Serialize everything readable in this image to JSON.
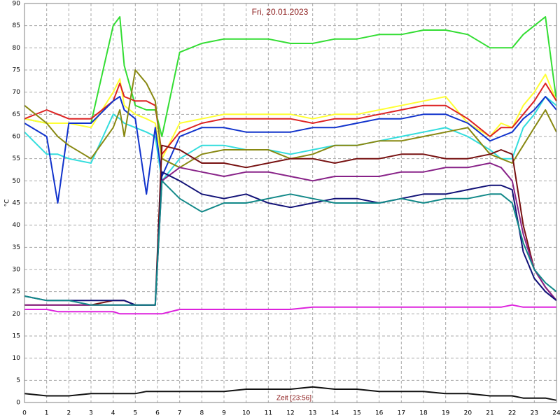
{
  "chart_data": {
    "type": "line",
    "title": "Fri, 20.01.2023",
    "ylabel": "°C",
    "xlabel": "Zeit [23:56]",
    "x": [
      0,
      1,
      1.5,
      2,
      3,
      4,
      4.3,
      4.5,
      5,
      5.5,
      5.9,
      6.2,
      7,
      8,
      9,
      10,
      11,
      12,
      13,
      14,
      15,
      16,
      17,
      18,
      19,
      20,
      21,
      21.5,
      22,
      22.5,
      23,
      23.5,
      24
    ],
    "xlim": [
      0,
      24
    ],
    "ylim": [
      0,
      90
    ],
    "xticks": [
      0,
      1,
      2,
      3,
      4,
      5,
      6,
      7,
      8,
      9,
      10,
      11,
      12,
      13,
      14,
      15,
      16,
      17,
      18,
      19,
      20,
      21,
      22,
      23,
      24
    ],
    "yticks": [
      0,
      5,
      10,
      15,
      20,
      25,
      30,
      35,
      40,
      45,
      50,
      55,
      60,
      65,
      70,
      75,
      80,
      85,
      90
    ],
    "grid": true,
    "series": [
      {
        "color": "#33dd33",
        "values": [
          64,
          63,
          63,
          63,
          63,
          85,
          87,
          76,
          67,
          66,
          66,
          60,
          79,
          81,
          82,
          82,
          82,
          81,
          81,
          82,
          82,
          83,
          83,
          84,
          84,
          83,
          80,
          80,
          80,
          83,
          85,
          87,
          68
        ]
      },
      {
        "color": "#ffff33",
        "values": [
          64,
          63,
          63,
          63,
          62,
          70,
          73,
          67,
          65,
          64,
          63,
          55,
          63,
          64,
          65,
          65,
          65,
          65,
          64,
          65,
          65,
          66,
          67,
          68,
          69,
          63,
          60,
          63,
          62,
          67,
          70,
          74,
          68
        ]
      },
      {
        "color": "#dd2222",
        "values": [
          64,
          66,
          65,
          64,
          64,
          68,
          72,
          69,
          68,
          68,
          67,
          56,
          61,
          63,
          64,
          64,
          64,
          64,
          63,
          64,
          64,
          65,
          66,
          67,
          67,
          64,
          60,
          62,
          62,
          65,
          68,
          72,
          68
        ]
      },
      {
        "color": "#33dddd",
        "values": [
          61,
          56,
          56,
          55,
          54,
          65,
          64,
          63,
          62,
          61,
          60,
          50,
          55,
          58,
          58,
          57,
          57,
          56,
          57,
          58,
          58,
          59,
          60,
          61,
          62,
          60,
          57,
          55,
          55,
          62,
          65,
          69,
          67
        ]
      },
      {
        "color": "#1133cc",
        "values": [
          63,
          60,
          45,
          63,
          63,
          68,
          69,
          66,
          64,
          47,
          62,
          51,
          60,
          62,
          62,
          61,
          61,
          61,
          62,
          62,
          63,
          64,
          64,
          65,
          65,
          63,
          59,
          60,
          61,
          64,
          66,
          69,
          66
        ]
      },
      {
        "color": "#888811",
        "values": [
          67,
          63,
          60,
          58,
          55,
          62,
          66,
          60,
          75,
          72,
          68,
          55,
          53,
          56,
          57,
          57,
          57,
          55,
          56,
          58,
          58,
          59,
          59,
          60,
          61,
          62,
          56,
          55,
          54,
          58,
          62,
          66,
          61
        ]
      },
      {
        "color": "#771111",
        "values": [
          22,
          22,
          22,
          22,
          22,
          23,
          23,
          23,
          22,
          22,
          22,
          58,
          57,
          54,
          54,
          53,
          54,
          55,
          55,
          54,
          55,
          55,
          56,
          56,
          55,
          55,
          56,
          57,
          56,
          40,
          30,
          26,
          23
        ]
      },
      {
        "color": "#882288",
        "values": [
          22,
          22,
          22,
          22,
          22,
          22,
          22,
          22,
          22,
          22,
          22,
          50,
          53,
          52,
          51,
          52,
          52,
          51,
          50,
          51,
          51,
          51,
          52,
          52,
          53,
          53,
          54,
          53,
          50,
          38,
          30,
          26,
          23
        ]
      },
      {
        "color": "#111177",
        "values": [
          24,
          23,
          23,
          23,
          23,
          23,
          23,
          23,
          22,
          22,
          22,
          52,
          50,
          47,
          46,
          47,
          45,
          44,
          45,
          46,
          46,
          45,
          46,
          47,
          47,
          48,
          49,
          49,
          48,
          34,
          28,
          25,
          23
        ]
      },
      {
        "color": "#118888",
        "values": [
          24,
          23,
          23,
          23,
          22,
          22,
          22,
          22,
          22,
          22,
          22,
          50,
          46,
          43,
          45,
          45,
          46,
          47,
          46,
          45,
          45,
          45,
          46,
          45,
          46,
          46,
          47,
          47,
          45,
          36,
          30,
          27,
          25
        ]
      },
      {
        "color": "#dd22dd",
        "values": [
          21,
          21,
          20.5,
          20.5,
          20.5,
          20.5,
          20,
          20,
          20,
          20,
          20,
          20,
          21,
          21,
          21,
          21,
          21,
          21,
          21.5,
          21.5,
          21.5,
          21.5,
          21.5,
          21.5,
          21.5,
          21.5,
          21.5,
          21.5,
          22,
          21.5,
          21.5,
          21.5,
          21.5
        ]
      },
      {
        "color": "#111111",
        "values": [
          2,
          1.5,
          1.5,
          1.5,
          2,
          2,
          2,
          2,
          2,
          2.5,
          2.5,
          2.5,
          2.5,
          2.5,
          2.5,
          3,
          3,
          3,
          3.5,
          3,
          3,
          2.5,
          2.5,
          2.5,
          2,
          2,
          1.5,
          1.5,
          1.5,
          1,
          1,
          1,
          0.5
        ]
      }
    ]
  }
}
